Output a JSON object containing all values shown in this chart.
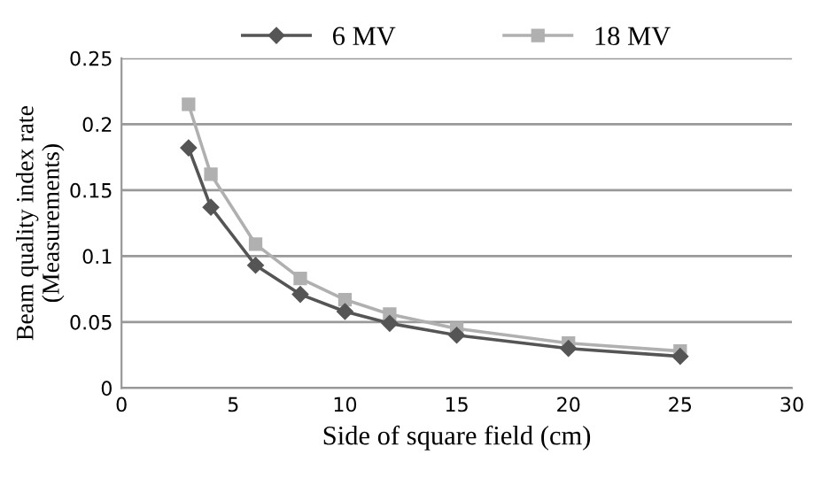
{
  "chart_data": {
    "type": "line",
    "xlabel": "Side of square field (cm)",
    "ylabel": "Beam quality index rate\n(Measurements)",
    "x": [
      3,
      4,
      6,
      8,
      10,
      12,
      15,
      20,
      25
    ],
    "series": [
      {
        "name": "6 MV",
        "color": "#555555",
        "marker": "diamond",
        "values": [
          0.182,
          0.137,
          0.093,
          0.071,
          0.058,
          0.049,
          0.04,
          0.03,
          0.024
        ]
      },
      {
        "name": "18 MV",
        "color": "#b0b0b0",
        "marker": "square",
        "values": [
          0.215,
          0.162,
          0.109,
          0.083,
          0.067,
          0.056,
          0.045,
          0.034,
          0.028
        ]
      }
    ],
    "xlim": [
      0,
      30
    ],
    "xticks": [
      0,
      5,
      10,
      15,
      20,
      25,
      30
    ],
    "ylim": [
      0,
      0.25
    ],
    "yticks": [
      0,
      0.05,
      0.1,
      0.15,
      0.2,
      0.25
    ],
    "grid": "y",
    "legend": "top"
  }
}
